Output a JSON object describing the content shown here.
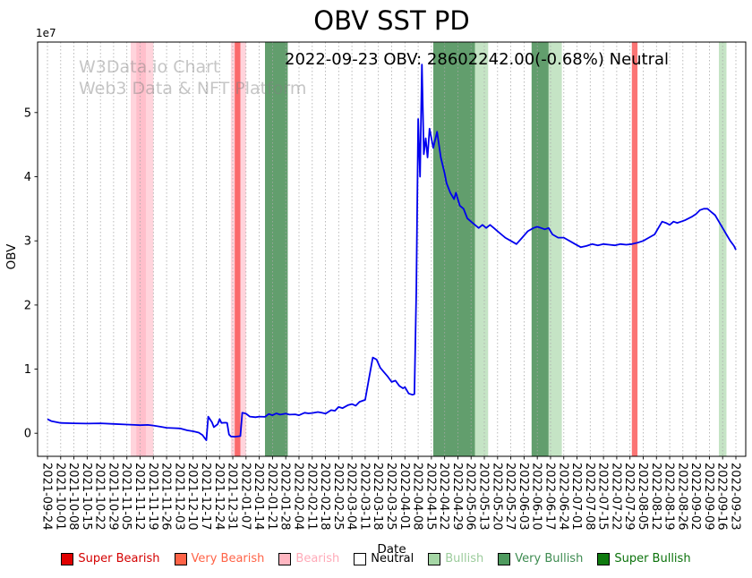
{
  "chart_data": {
    "type": "line",
    "title": "OBV SST PD",
    "annotation": "2022-09-23 OBV: 28602242.00(-0.68%) Neutral",
    "watermark": [
      "W3Data.io Chart",
      "Web3 Data & NFT Platform"
    ],
    "xlabel": "Date",
    "ylabel": "OBV",
    "y_offset_label": "1e7",
    "line_color": "#0000ee",
    "grid": "vertical-dashed",
    "legend_position": "bottom",
    "ylim": [
      -3600000,
      61000000
    ],
    "x_domain_days": [
      0,
      364
    ],
    "latest": {
      "date": "2022-09-23",
      "obv": 28602242.0,
      "change_pct": -0.68,
      "signal": "Neutral"
    },
    "x_tick_labels": [
      "2021-09-24",
      "2021-10-01",
      "2021-10-08",
      "2021-10-15",
      "2021-10-22",
      "2021-10-29",
      "2021-11-05",
      "2021-11-12",
      "2021-11-19",
      "2021-11-26",
      "2021-12-03",
      "2021-12-10",
      "2021-12-17",
      "2021-12-24",
      "2021-12-31",
      "2022-01-07",
      "2022-01-14",
      "2022-01-21",
      "2022-01-28",
      "2022-02-04",
      "2022-02-11",
      "2022-02-18",
      "2022-02-25",
      "2022-03-04",
      "2022-03-11",
      "2022-03-18",
      "2022-03-25",
      "2022-04-01",
      "2022-04-08",
      "2022-04-15",
      "2022-04-22",
      "2022-04-29",
      "2022-05-06",
      "2022-05-13",
      "2022-05-20",
      "2022-05-27",
      "2022-06-03",
      "2022-06-10",
      "2022-06-17",
      "2022-06-24",
      "2022-07-01",
      "2022-07-08",
      "2022-07-15",
      "2022-07-22",
      "2022-07-29",
      "2022-08-05",
      "2022-08-12",
      "2022-08-19",
      "2022-08-26",
      "2022-09-02",
      "2022-09-09",
      "2022-09-16",
      "2022-09-23"
    ],
    "y_ticks": [
      {
        "value": 0,
        "label": "0"
      },
      {
        "value": 10000000,
        "label": "1"
      },
      {
        "value": 20000000,
        "label": "2"
      },
      {
        "value": 30000000,
        "label": "3"
      },
      {
        "value": 40000000,
        "label": "4"
      },
      {
        "value": 50000000,
        "label": "5"
      }
    ],
    "series": [
      {
        "name": "OBV",
        "color": "#0000ee",
        "points": [
          [
            0,
            2200000
          ],
          [
            2,
            1900000
          ],
          [
            7,
            1600000
          ],
          [
            14,
            1550000
          ],
          [
            21,
            1500000
          ],
          [
            28,
            1550000
          ],
          [
            35,
            1450000
          ],
          [
            42,
            1350000
          ],
          [
            46,
            1300000
          ],
          [
            49,
            1250000
          ],
          [
            53,
            1300000
          ],
          [
            56,
            1200000
          ],
          [
            60,
            1000000
          ],
          [
            63,
            850000
          ],
          [
            67,
            800000
          ],
          [
            70,
            750000
          ],
          [
            74,
            450000
          ],
          [
            77,
            300000
          ],
          [
            80,
            100000
          ],
          [
            82,
            -300000
          ],
          [
            84,
            -1100000
          ],
          [
            85,
            2600000
          ],
          [
            87,
            1700000
          ],
          [
            88,
            950000
          ],
          [
            90,
            1400000
          ],
          [
            91,
            2200000
          ],
          [
            92,
            1600000
          ],
          [
            94,
            1650000
          ],
          [
            95,
            1600000
          ],
          [
            96,
            -200000
          ],
          [
            97,
            -500000
          ],
          [
            99,
            -550000
          ],
          [
            101,
            -480000
          ],
          [
            102,
            -450000
          ],
          [
            103,
            3200000
          ],
          [
            105,
            3050000
          ],
          [
            107,
            2600000
          ],
          [
            110,
            2500000
          ],
          [
            112,
            2600000
          ],
          [
            115,
            2550000
          ],
          [
            117,
            3000000
          ],
          [
            119,
            2800000
          ],
          [
            121,
            3100000
          ],
          [
            123,
            2900000
          ],
          [
            126,
            3050000
          ],
          [
            128,
            2900000
          ],
          [
            131,
            2950000
          ],
          [
            133,
            2800000
          ],
          [
            136,
            3200000
          ],
          [
            138,
            3100000
          ],
          [
            140,
            3150000
          ],
          [
            143,
            3300000
          ],
          [
            145,
            3200000
          ],
          [
            147,
            3050000
          ],
          [
            150,
            3600000
          ],
          [
            152,
            3500000
          ],
          [
            154,
            4100000
          ],
          [
            156,
            3900000
          ],
          [
            159,
            4400000
          ],
          [
            161,
            4550000
          ],
          [
            163,
            4300000
          ],
          [
            165,
            4900000
          ],
          [
            168,
            5200000
          ],
          [
            170,
            8500000
          ],
          [
            172,
            11800000
          ],
          [
            174,
            11500000
          ],
          [
            176,
            10200000
          ],
          [
            178,
            9500000
          ],
          [
            180,
            8800000
          ],
          [
            182,
            8000000
          ],
          [
            184,
            8200000
          ],
          [
            186,
            7400000
          ],
          [
            188,
            7000000
          ],
          [
            189,
            7200000
          ],
          [
            190,
            6700000
          ],
          [
            191,
            6200000
          ],
          [
            193,
            6000000
          ],
          [
            194,
            6100000
          ],
          [
            195,
            22000000
          ],
          [
            196,
            49000000
          ],
          [
            197,
            40000000
          ],
          [
            198,
            57500000
          ],
          [
            199,
            43500000
          ],
          [
            200,
            46000000
          ],
          [
            201,
            43000000
          ],
          [
            202,
            47500000
          ],
          [
            204,
            44500000
          ],
          [
            206,
            47000000
          ],
          [
            208,
            43000000
          ],
          [
            210,
            40500000
          ],
          [
            211,
            39000000
          ],
          [
            213,
            37500000
          ],
          [
            215,
            36500000
          ],
          [
            216,
            37500000
          ],
          [
            218,
            35500000
          ],
          [
            220,
            35000000
          ],
          [
            222,
            33500000
          ],
          [
            224,
            33000000
          ],
          [
            226,
            32500000
          ],
          [
            228,
            32000000
          ],
          [
            230,
            32500000
          ],
          [
            232,
            32000000
          ],
          [
            234,
            32500000
          ],
          [
            236,
            32000000
          ],
          [
            238,
            31500000
          ],
          [
            240,
            31000000
          ],
          [
            242,
            30500000
          ],
          [
            245,
            30000000
          ],
          [
            248,
            29500000
          ],
          [
            251,
            30500000
          ],
          [
            254,
            31500000
          ],
          [
            257,
            32000000
          ],
          [
            259,
            32200000
          ],
          [
            261,
            32000000
          ],
          [
            263,
            31800000
          ],
          [
            265,
            32000000
          ],
          [
            267,
            31000000
          ],
          [
            270,
            30500000
          ],
          [
            273,
            30500000
          ],
          [
            276,
            30000000
          ],
          [
            279,
            29500000
          ],
          [
            282,
            29000000
          ],
          [
            285,
            29200000
          ],
          [
            288,
            29500000
          ],
          [
            291,
            29300000
          ],
          [
            294,
            29500000
          ],
          [
            297,
            29400000
          ],
          [
            300,
            29300000
          ],
          [
            303,
            29500000
          ],
          [
            306,
            29400000
          ],
          [
            309,
            29500000
          ],
          [
            312,
            29700000
          ],
          [
            315,
            30000000
          ],
          [
            318,
            30500000
          ],
          [
            321,
            31000000
          ],
          [
            323,
            32000000
          ],
          [
            325,
            33000000
          ],
          [
            327,
            32800000
          ],
          [
            329,
            32500000
          ],
          [
            331,
            33000000
          ],
          [
            333,
            32800000
          ],
          [
            335,
            33000000
          ],
          [
            337,
            33200000
          ],
          [
            339,
            33500000
          ],
          [
            341,
            33800000
          ],
          [
            343,
            34200000
          ],
          [
            345,
            34800000
          ],
          [
            347,
            35000000
          ],
          [
            349,
            35000000
          ],
          [
            351,
            34500000
          ],
          [
            353,
            34000000
          ],
          [
            355,
            33000000
          ],
          [
            357,
            32000000
          ],
          [
            359,
            31000000
          ],
          [
            361,
            30000000
          ],
          [
            363,
            29200000
          ],
          [
            364,
            28602242
          ]
        ]
      }
    ],
    "bands": [
      {
        "start_day": 44,
        "end_day": 56,
        "type": "bearish"
      },
      {
        "start_day": 47,
        "end_day": 52,
        "type": "bearish"
      },
      {
        "start_day": 97,
        "end_day": 105,
        "type": "bearish"
      },
      {
        "start_day": 99,
        "end_day": 102,
        "type": "very_bearish"
      },
      {
        "start_day": 115,
        "end_day": 127,
        "type": "very_bullish"
      },
      {
        "start_day": 204,
        "end_day": 226,
        "type": "very_bullish"
      },
      {
        "start_day": 226,
        "end_day": 233,
        "type": "bullish"
      },
      {
        "start_day": 256,
        "end_day": 265,
        "type": "very_bullish"
      },
      {
        "start_day": 265,
        "end_day": 272,
        "type": "bullish"
      },
      {
        "start_day": 309,
        "end_day": 312,
        "type": "very_bearish"
      },
      {
        "start_day": 355,
        "end_day": 359,
        "type": "bullish"
      }
    ],
    "band_colors": {
      "super_bearish": "rgba(224,0,0,0.8)",
      "very_bearish": "rgba(250,70,70,0.75)",
      "bearish": "rgba(255,170,185,0.5)",
      "neutral": "rgba(255,255,255,0)",
      "bullish": "rgba(150,205,150,0.55)",
      "very_bullish": "rgba(45,125,60,0.75)",
      "super_bullish": "rgba(0,100,0,0.85)"
    },
    "legend": [
      {
        "label": "Super Bearish",
        "color": "#e00000",
        "text_color": "#d40000"
      },
      {
        "label": "Very Bearish",
        "color": "#ff6347",
        "text_color": "#ff6347"
      },
      {
        "label": "Bearish",
        "color": "#ffb6c1",
        "text_color": "#ffaab8"
      },
      {
        "label": "Neutral",
        "color": "#ffffff",
        "text_color": "#000000"
      },
      {
        "label": "Bullish",
        "color": "#a5d6a5",
        "text_color": "#9ccc9c"
      },
      {
        "label": "Very Bullish",
        "color": "#4e9a5e",
        "text_color": "#3d8b50"
      },
      {
        "label": "Super Bullish",
        "color": "#0f7a0f",
        "text_color": "#0b720b"
      }
    ]
  }
}
